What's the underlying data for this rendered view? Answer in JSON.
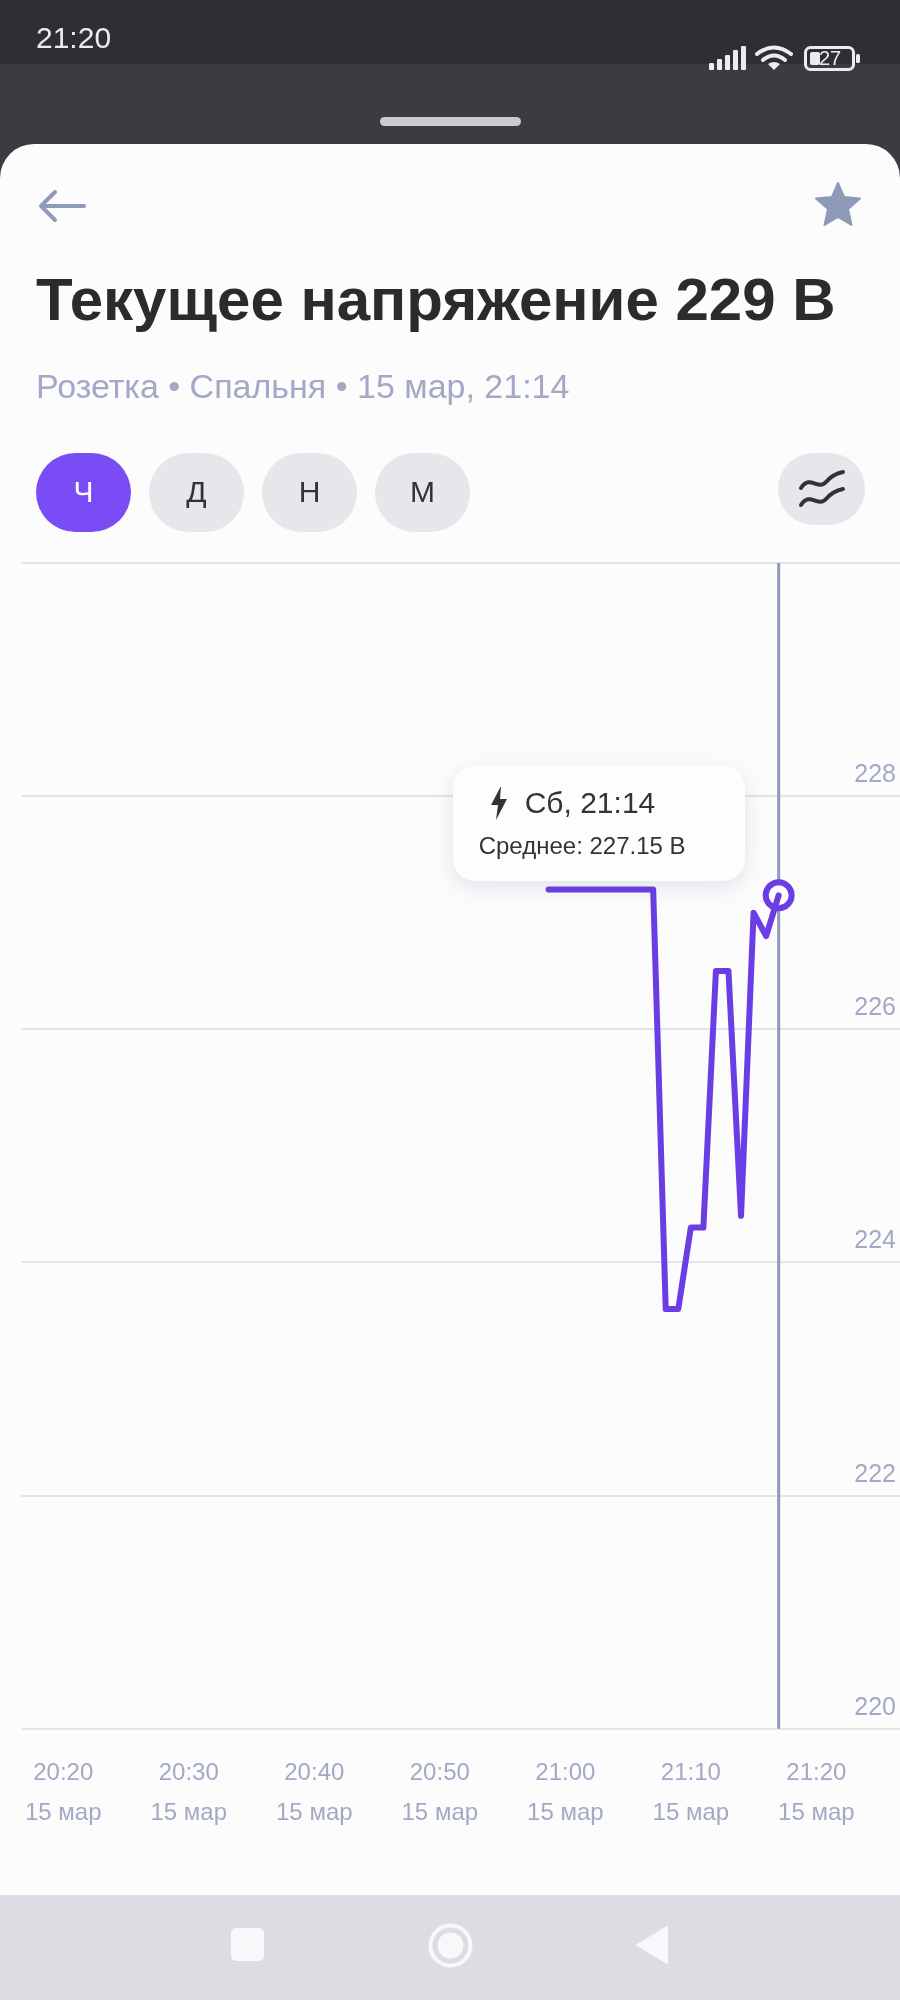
{
  "chart_data": {
    "type": "line",
    "title": "Текущее напряжение 229 В",
    "subtitle": "Розетка • Спальня • 15 мар, 21:14",
    "x": [
      "--03-15T20:58:40",
      "--03-15T21:07",
      "--03-15T21:08",
      "--03-15T21:09",
      "--03-15T21:10",
      "--03-15T21:11",
      "--03-15T21:12",
      "--03-15T21:13",
      "--03-15T21:14",
      "--03-15T21:15",
      "--03-15T21:16",
      "--03-15T21:17"
    ],
    "series": [
      {
        "color": "#6b3de4",
        "values": [
          227.2,
          227.2,
          223.6,
          223.6,
          224.3,
          224.3,
          226.5,
          226.5,
          224.4,
          227.0,
          226.8,
          227.15
        ]
      },
      {
        "type": "scatter",
        "marker": "circle",
        "color": "#6b3de4",
        "x": [
          "--03-15T21:17"
        ],
        "values": [
          227.15
        ]
      }
    ],
    "marker": "none",
    "line_style": "solid",
    "grid": "y",
    "xlim": [
      "--03-15T20:16:40",
      "--03-15T21:26:40"
    ],
    "xticks": [
      {
        "value": "--03-15T20:20",
        "label": "20:20\n15 мар"
      },
      {
        "value": "--03-15T20:30",
        "label": "20:30\n15 мар"
      },
      {
        "value": "--03-15T20:40",
        "label": "20:40\n15 мар"
      },
      {
        "value": "--03-15T20:50",
        "label": "20:50\n15 мар"
      },
      {
        "value": "--03-15T21:00",
        "label": "21:00\n15 мар"
      },
      {
        "value": "--03-15T21:10",
        "label": "21:10\n15 мар"
      },
      {
        "value": "--03-15T21:20",
        "label": "21:20\n15 мар"
      }
    ],
    "ylim": [
      220,
      230
    ],
    "yticks": [
      220,
      222,
      224,
      226,
      228,
      {
        "value": 230,
        "label": null
      }
    ],
    "ref_lines": [
      {
        "axis": "x",
        "value": "--03-15T21:17",
        "color": "#8f99b8"
      }
    ],
    "annotations": [
      "21:20",
      "27",
      "Ч",
      "Д",
      "Н",
      "М",
      "Сб, 21:14\nСреднее: 227.15 В"
    ]
  }
}
